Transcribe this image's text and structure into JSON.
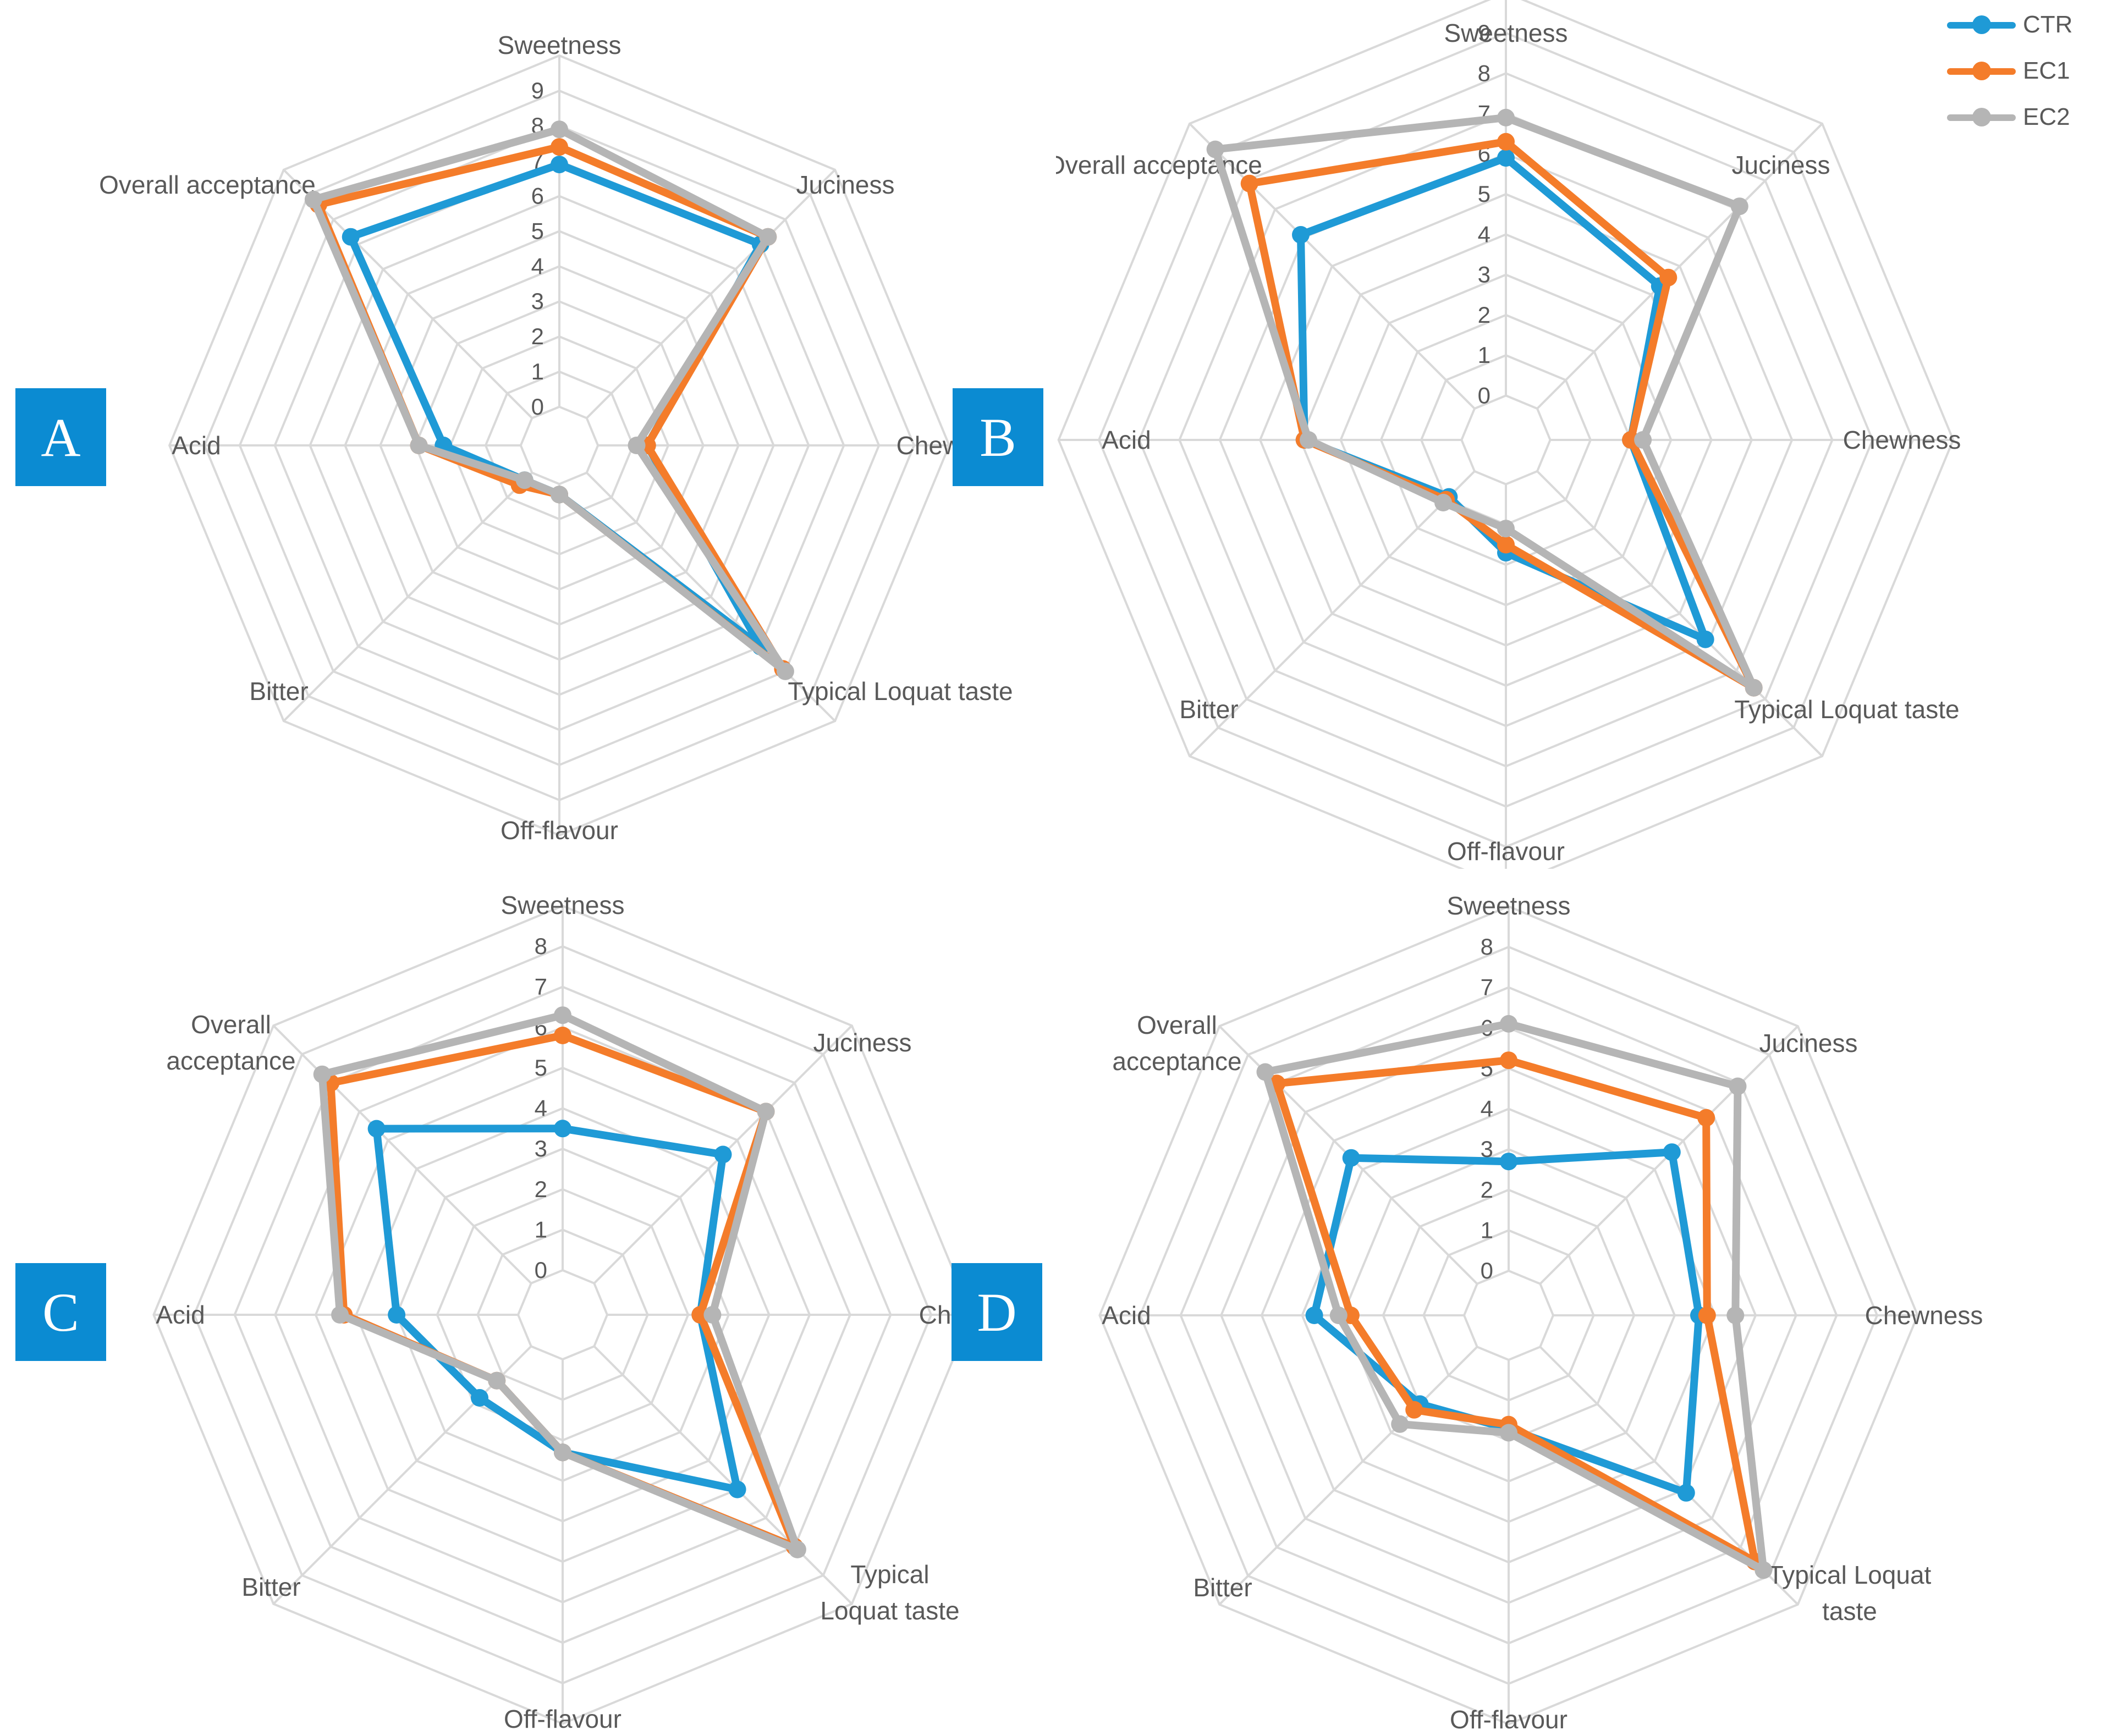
{
  "colors": {
    "grid": "#d9d9d9",
    "text": "#595959",
    "badge": "#0b8bd2"
  },
  "legend": [
    {
      "name": "CTR",
      "color": "#1f9ad6"
    },
    {
      "name": "EC1",
      "color": "#f47c2a"
    },
    {
      "name": "EC2",
      "color": "#b5b5b5"
    }
  ],
  "chart_data": [
    {
      "type": "radar",
      "panel": "A",
      "axes": [
        "Sweetness",
        "Juciness",
        "Chewness",
        "Typical Loquat taste",
        "Off-flavour",
        "Bitter",
        "Acid",
        "Overall acceptance"
      ],
      "ticks": [
        "0",
        "1",
        "2",
        "3",
        "4",
        "5",
        "6",
        "7",
        "8",
        "9"
      ],
      "rmax": 9,
      "series": [
        {
          "name": "CTR",
          "values": [
            6.9,
            7.0,
            1.4,
            7.0,
            0.3,
            0.3,
            2.2,
            7.3
          ]
        },
        {
          "name": "EC1",
          "values": [
            7.4,
            7.3,
            1.4,
            7.9,
            0.3,
            0.5,
            2.9,
            8.6
          ]
        },
        {
          "name": "EC2",
          "values": [
            7.9,
            7.3,
            1.1,
            8.0,
            0.3,
            0.3,
            2.9,
            8.8
          ]
        }
      ]
    },
    {
      "type": "radar",
      "panel": "B",
      "axes": [
        "Sweetness",
        "Juciness",
        "Chewness",
        "Typical Loquat taste",
        "Off-flavour",
        "Bitter",
        "Acid",
        "Overall acceptance"
      ],
      "ticks": [
        "0",
        "1",
        "2",
        "3",
        "4",
        "5",
        "6",
        "7",
        "8",
        "9"
      ],
      "rmax": 9,
      "series": [
        {
          "name": "CTR",
          "values": [
            5.9,
            4.3,
            2.0,
            5.9,
            1.7,
            0.9,
            3.9,
            6.1
          ]
        },
        {
          "name": "EC1",
          "values": [
            6.3,
            4.6,
            2.0,
            7.6,
            1.5,
            1.0,
            3.9,
            7.9
          ]
        },
        {
          "name": "EC2",
          "values": [
            6.9,
            7.1,
            2.3,
            7.6,
            1.1,
            1.1,
            3.8,
            9.1
          ]
        }
      ]
    },
    {
      "type": "radar",
      "panel": "C",
      "axes": [
        "Sweetness",
        "Juciness",
        "Chewness",
        "Typical Loquat taste",
        "Off-flavour",
        "Bitter",
        "Acid",
        "Overall acceptance"
      ],
      "axis_label_lines": [
        [
          "Sweetness"
        ],
        [
          "Juciness"
        ],
        [
          "Chewness"
        ],
        [
          "Typical",
          "Loquat taste"
        ],
        [
          "Off-flavour"
        ],
        [
          "Bitter"
        ],
        [
          "Acid"
        ],
        [
          "Overall",
          "acceptance"
        ]
      ],
      "ticks": [
        "0",
        "1",
        "2",
        "3",
        "4",
        "5",
        "6",
        "7",
        "8"
      ],
      "rmax": 8,
      "series": [
        {
          "name": "CTR",
          "values": [
            3.5,
            4.5,
            2.3,
            5.0,
            2.3,
            1.8,
            3.0,
            5.4
          ]
        },
        {
          "name": "EC1",
          "values": [
            5.8,
            6.0,
            2.3,
            7.0,
            2.3,
            1.2,
            4.3,
            7.0
          ]
        },
        {
          "name": "EC2",
          "values": [
            6.3,
            6.0,
            2.6,
            7.1,
            2.3,
            1.2,
            4.4,
            7.3
          ]
        }
      ]
    },
    {
      "type": "radar",
      "panel": "D",
      "axes": [
        "Sweetness",
        "Juciness",
        "Chewness",
        "Typical Loquat taste",
        "Off-flavour",
        "Bitter",
        "Acid",
        "Overall acceptance"
      ],
      "axis_label_lines": [
        [
          "Sweetness"
        ],
        [
          "Juciness"
        ],
        [
          "Chewness"
        ],
        [
          "Typical Loquat",
          "taste"
        ],
        [
          "Off-flavour"
        ],
        [
          "Bitter"
        ],
        [
          "Acid"
        ],
        [
          "Overall",
          "acceptance"
        ]
      ],
      "ticks": [
        "0",
        "1",
        "2",
        "3",
        "4",
        "5",
        "6",
        "7",
        "8"
      ],
      "rmax": 8,
      "series": [
        {
          "name": "CTR",
          "values": [
            2.7,
            4.6,
            3.6,
            5.1,
            1.7,
            2.0,
            3.7,
            4.4
          ]
        },
        {
          "name": "EC1",
          "values": [
            5.2,
            5.8,
            3.8,
            7.5,
            1.6,
            2.2,
            2.8,
            7.0
          ]
        },
        {
          "name": "EC2",
          "values": [
            6.1,
            6.9,
            4.5,
            7.8,
            1.8,
            2.7,
            3.1,
            7.4
          ]
        }
      ]
    }
  ]
}
